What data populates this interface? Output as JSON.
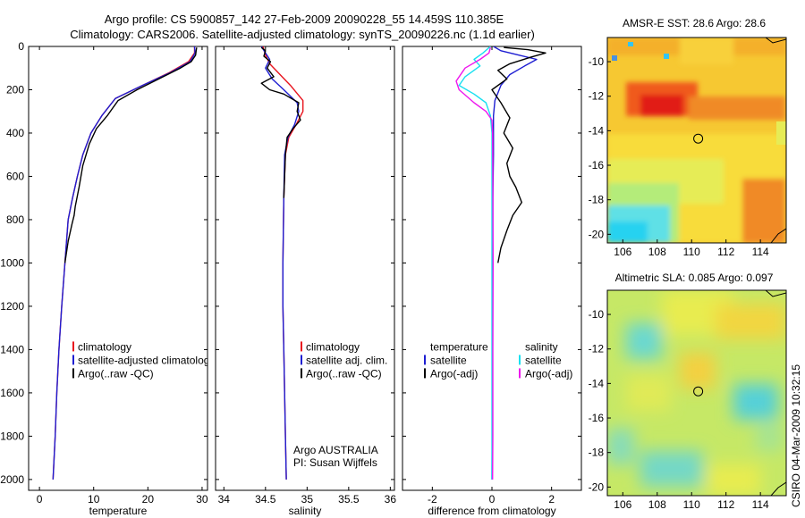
{
  "header": {
    "title_line1": "Argo profile: CS 5900857_142 27-Feb-2009 20090228_55 14.459S 110.385E",
    "title_line2": "Climatology: CARS2006. Satellite-adjusted climatology: synTS_20090226.nc (1.1d earlier)"
  },
  "colors": {
    "climatology": "#e8141e",
    "satellite": "#1e1ed2",
    "argo": "#000000",
    "sal_satellite": "#18e0f0",
    "sal_argo": "#ee18ee"
  },
  "chart_data": [
    {
      "id": "temperature",
      "type": "line",
      "xlabel": "temperature",
      "ylabel": "",
      "xlim": [
        -2,
        31
      ],
      "ylim": [
        2050,
        0
      ],
      "xticks": [
        "0",
        "10",
        "20",
        "30"
      ],
      "xtick_values": [
        0,
        10,
        20,
        30
      ],
      "yticks": [
        "0",
        "200",
        "400",
        "600",
        "800",
        "1000",
        "1200",
        "1400",
        "1600",
        "1800",
        "2000"
      ],
      "ytick_values": [
        0,
        200,
        400,
        600,
        800,
        1000,
        1200,
        1400,
        1600,
        1800,
        2000
      ],
      "legend": {
        "placement": "lower-right",
        "items": [
          "climatology",
          "satellite-adjusted climatology",
          "Argo(..raw -QC)"
        ]
      },
      "series": [
        {
          "name": "climatology",
          "color_key": "climatology",
          "x": [
            28.6,
            28.6,
            27.5,
            24.0,
            19.0,
            14.0,
            11.5,
            9.5,
            8.0,
            7.0,
            6.1,
            5.3,
            4.7,
            4.1,
            3.6,
            3.2,
            2.9,
            2.6,
            2.5
          ],
          "y": [
            0,
            30,
            70,
            120,
            180,
            240,
            320,
            400,
            500,
            600,
            700,
            800,
            1000,
            1200,
            1400,
            1600,
            1800,
            1950,
            2000
          ]
        },
        {
          "name": "satellite-adjusted climatology",
          "color_key": "satellite",
          "x": [
            28.6,
            28.7,
            27.8,
            24.2,
            19.0,
            14.0,
            11.5,
            9.5,
            8.0,
            7.0,
            6.1,
            5.3,
            4.7,
            4.1,
            3.6,
            3.2,
            2.9,
            2.6,
            2.5
          ],
          "y": [
            0,
            30,
            70,
            120,
            180,
            240,
            320,
            400,
            500,
            600,
            700,
            800,
            1000,
            1200,
            1400,
            1600,
            1800,
            1950,
            2000
          ]
        },
        {
          "name": "Argo(..raw -QC)",
          "color_key": "argo",
          "x": [
            29.0,
            28.9,
            28.8,
            28.0,
            26.0,
            22.0,
            18.0,
            14.5,
            12.5,
            10.5,
            9.2,
            8.0,
            7.3,
            6.6,
            6.4,
            6.0,
            5.3,
            4.7
          ],
          "y": [
            5,
            20,
            40,
            70,
            100,
            150,
            200,
            250,
            320,
            380,
            450,
            550,
            650,
            740,
            780,
            820,
            900,
            1000
          ]
        }
      ]
    },
    {
      "id": "salinity",
      "type": "line",
      "xlabel": "salinity",
      "ylabel": "",
      "xlim": [
        33.9,
        36.05
      ],
      "ylim": [
        2050,
        0
      ],
      "xticks": [
        "34",
        "34.5",
        "35",
        "35.5",
        "36"
      ],
      "xtick_values": [
        34,
        34.5,
        35,
        35.5,
        36
      ],
      "legend": {
        "placement": "lower-right",
        "items": [
          "climatology",
          "satellite adj. clim.",
          "Argo(..raw -QC)"
        ]
      },
      "annotation": [
        "Argo AUSTRALIA",
        "PI: Susan Wijffels"
      ],
      "series": [
        {
          "name": "climatology",
          "color_key": "climatology",
          "x": [
            34.47,
            34.5,
            34.55,
            34.65,
            34.8,
            34.95,
            34.95,
            34.87,
            34.78,
            34.74,
            34.72,
            34.71,
            34.71,
            34.72,
            34.73,
            34.74,
            34.75
          ],
          "y": [
            0,
            40,
            80,
            120,
            180,
            250,
            300,
            360,
            420,
            500,
            700,
            1000,
            1200,
            1400,
            1600,
            1800,
            2000
          ]
        },
        {
          "name": "satellite adj. clim.",
          "color_key": "satellite",
          "x": [
            34.45,
            34.5,
            34.55,
            34.5,
            34.58,
            34.72,
            34.88,
            34.9,
            34.85,
            34.77,
            34.73,
            34.72,
            34.71,
            34.71,
            34.72,
            34.73,
            34.74,
            34.75
          ],
          "y": [
            0,
            30,
            60,
            100,
            150,
            200,
            260,
            300,
            360,
            420,
            500,
            700,
            1000,
            1200,
            1400,
            1600,
            1800,
            2000
          ]
        },
        {
          "name": "Argo(..raw -QC)",
          "color_key": "argo",
          "x": [
            34.45,
            34.5,
            34.48,
            34.56,
            34.52,
            34.6,
            34.45,
            34.55,
            34.72,
            34.9,
            34.88,
            34.92,
            34.83,
            34.76,
            34.74,
            34.73,
            34.72
          ],
          "y": [
            5,
            20,
            45,
            70,
            100,
            140,
            170,
            200,
            220,
            260,
            300,
            340,
            380,
            420,
            500,
            600,
            700
          ]
        }
      ]
    },
    {
      "id": "difference",
      "type": "line",
      "xlabel": "difference from climatology",
      "ylabel": "",
      "xlim": [
        -3.0,
        3.0
      ],
      "ylim": [
        2050,
        0
      ],
      "xticks": [
        "-2",
        "0",
        "2"
      ],
      "xtick_values": [
        -2,
        0,
        2
      ],
      "legend": {
        "placement": "lower-right",
        "groups": [
          {
            "header": "temperature",
            "items": [
              "satellite",
              "Argo(-adj)"
            ]
          },
          {
            "header": "salinity",
            "items": [
              "satellite",
              "Argo(-adj)"
            ]
          }
        ]
      },
      "series": [
        {
          "name": "temperature satellite",
          "color_key": "satellite",
          "x": [
            0.05,
            0.3,
            0.9,
            1.5,
            1.1,
            0.6,
            0.3,
            0.1,
            0.05,
            0.05,
            0.05,
            0.03,
            0.02,
            0.02,
            0.01,
            0.01,
            0.0
          ],
          "y": [
            0,
            20,
            40,
            60,
            90,
            130,
            180,
            250,
            320,
            400,
            500,
            700,
            1000,
            1300,
            1600,
            1800,
            2000
          ]
        },
        {
          "name": "temperature Argo(-adj)",
          "color_key": "argo",
          "x": [
            0.4,
            1.2,
            1.8,
            1.3,
            0.6,
            0.2,
            0.5,
            0.0,
            0.3,
            0.6,
            0.4,
            0.7,
            0.5,
            0.6,
            0.8,
            1.0,
            0.7,
            0.5,
            0.3,
            0.2
          ],
          "y": [
            5,
            15,
            30,
            50,
            80,
            110,
            150,
            200,
            260,
            330,
            400,
            470,
            540,
            600,
            650,
            720,
            780,
            850,
            930,
            1000
          ]
        },
        {
          "name": "salinity satellite",
          "color_key": "sal_satellite",
          "x": [
            -0.05,
            -0.3,
            -0.6,
            -0.4,
            -0.9,
            -1.1,
            -0.6,
            -0.2,
            -0.05,
            0.0,
            0.0,
            0.0,
            0.0,
            0.0,
            0.0
          ],
          "y": [
            0,
            30,
            60,
            90,
            140,
            180,
            220,
            260,
            320,
            400,
            700,
            1000,
            1400,
            1800,
            2000
          ]
        },
        {
          "name": "salinity Argo(-adj)",
          "color_key": "sal_argo",
          "x": [
            -0.05,
            -0.1,
            -0.4,
            -0.9,
            -1.2,
            -1.1,
            -0.6,
            -0.2,
            0.0,
            0.02,
            0.03,
            0.04,
            0.03,
            0.03,
            0.02
          ],
          "y": [
            5,
            30,
            60,
            100,
            160,
            200,
            260,
            300,
            340,
            400,
            600,
            1000,
            1400,
            1800,
            2000
          ]
        }
      ]
    },
    {
      "id": "sst_map",
      "type": "heatmap",
      "title": "AMSR-E SST: 28.6 Argo: 28.6",
      "xticks": [
        "106",
        "108",
        "110",
        "112",
        "114"
      ],
      "xtick_values": [
        106,
        108,
        110,
        112,
        114
      ],
      "yticks": [
        "-10",
        "-12",
        "-14",
        "-16",
        "-18",
        "-20"
      ],
      "ytick_values": [
        -10,
        -12,
        -14,
        -16,
        -18,
        -20
      ],
      "xlim": [
        105.1,
        115.5
      ],
      "ylim": [
        -20.5,
        -8.6
      ],
      "marker": {
        "lon": 110.385,
        "lat": -14.459
      }
    },
    {
      "id": "sla_map",
      "type": "heatmap",
      "title": "Altimetric SLA: 0.085 Argo: 0.097",
      "xticks": [
        "106",
        "108",
        "110",
        "112",
        "114"
      ],
      "xtick_values": [
        106,
        108,
        110,
        112,
        114
      ],
      "yticks": [
        "-10",
        "-12",
        "-14",
        "-16",
        "-18",
        "-20"
      ],
      "ytick_values": [
        -10,
        -12,
        -14,
        -16,
        -18,
        -20
      ],
      "xlim": [
        105.1,
        115.5
      ],
      "ylim": [
        -20.5,
        -8.6
      ],
      "marker": {
        "lon": 110.385,
        "lat": -14.459
      }
    }
  ],
  "footer": {
    "stamp": "CSIRO 04-Mar-2009 10:32:15"
  }
}
